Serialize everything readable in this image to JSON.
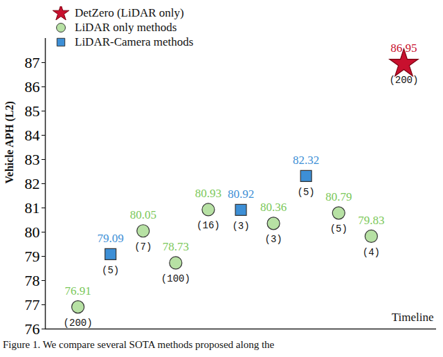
{
  "chart_data": {
    "type": "scatter",
    "caption": "Figure 1. We compare several SOTA methods proposed along the",
    "x_label": "Timeline",
    "y_label": "Vehicle APH (L2)",
    "xlim": [
      0,
      12
    ],
    "xticks": [],
    "ylim": [
      76,
      88
    ],
    "yticks": [
      76,
      77,
      78,
      79,
      80,
      81,
      82,
      83,
      84,
      85,
      86,
      87
    ],
    "tick_labels": "y",
    "data_labels": true,
    "series": [
      {
        "name": "DetZero (LiDAR only)",
        "color": "#c8102e",
        "marker": "star",
        "x": [
          11
        ],
        "values": [
          86.95
        ],
        "point_labels": [
          "(200)"
        ]
      },
      {
        "name": "LiDAR only methods",
        "color": "#7cc85a",
        "marker": "circle",
        "x": [
          1,
          3,
          4,
          5,
          7,
          9,
          10
        ],
        "values": [
          76.91,
          80.05,
          78.73,
          80.93,
          80.36,
          80.79,
          79.83
        ],
        "point_labels": [
          "(200)",
          "(7)",
          "(100)",
          "(16)",
          "(3)",
          "(5)",
          "(4)"
        ]
      },
      {
        "name": "LiDAR-Camera methods",
        "color": "#3d8fd6",
        "marker": "square",
        "x": [
          2,
          6,
          8
        ],
        "values": [
          79.09,
          80.92,
          82.32
        ],
        "point_labels": [
          "(5)",
          "(3)",
          "(5)"
        ]
      }
    ]
  }
}
